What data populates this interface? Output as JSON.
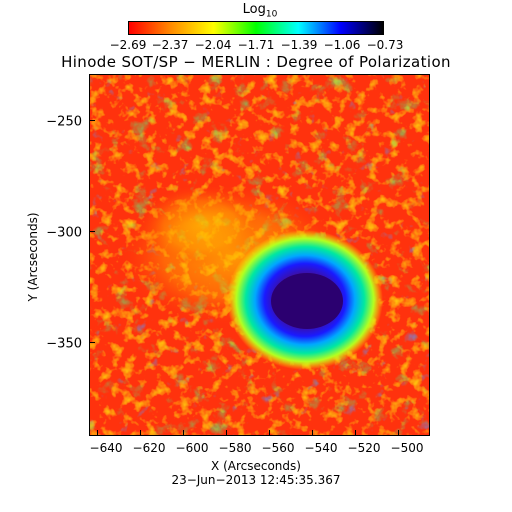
{
  "colorbar": {
    "label_main": "Log",
    "label_sub": "10",
    "ticks": [
      "−2.69",
      "−2.37",
      "−2.04",
      "−1.71",
      "−1.39",
      "−1.06",
      "−0.73"
    ],
    "colors": [
      "#ff0000",
      "#ff8c00",
      "#ffff00",
      "#00ff00",
      "#00ffff",
      "#0000ff",
      "#000000"
    ]
  },
  "title": "Hinode SOT/SP − MERLIN : Degree of Polarization",
  "axes": {
    "xlabel": "X (Arcseconds)",
    "ylabel": "Y (Arcseconds)",
    "xticks": [
      "−640",
      "−620",
      "−600",
      "−580",
      "−560",
      "−540",
      "−520",
      "−500"
    ],
    "yticks": [
      "−250",
      "−300",
      "−350"
    ]
  },
  "timestamp": "23−Jun−2013 12:45:35.367"
}
